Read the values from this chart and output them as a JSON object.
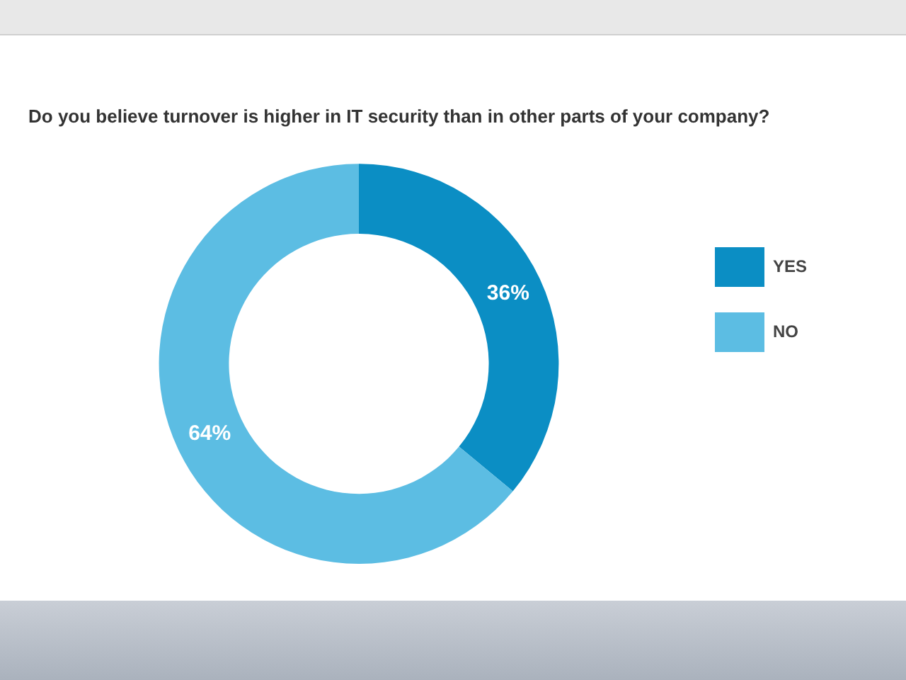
{
  "chart_data": {
    "type": "donut",
    "title": "Do you believe turnover is higher in IT security than in other parts of your company?",
    "categories": [
      "YES",
      "NO"
    ],
    "values": [
      36,
      64
    ],
    "colors": [
      "#0b8ec4",
      "#5cbde3"
    ],
    "value_labels": [
      "36%",
      "64%"
    ],
    "legend": "right"
  }
}
